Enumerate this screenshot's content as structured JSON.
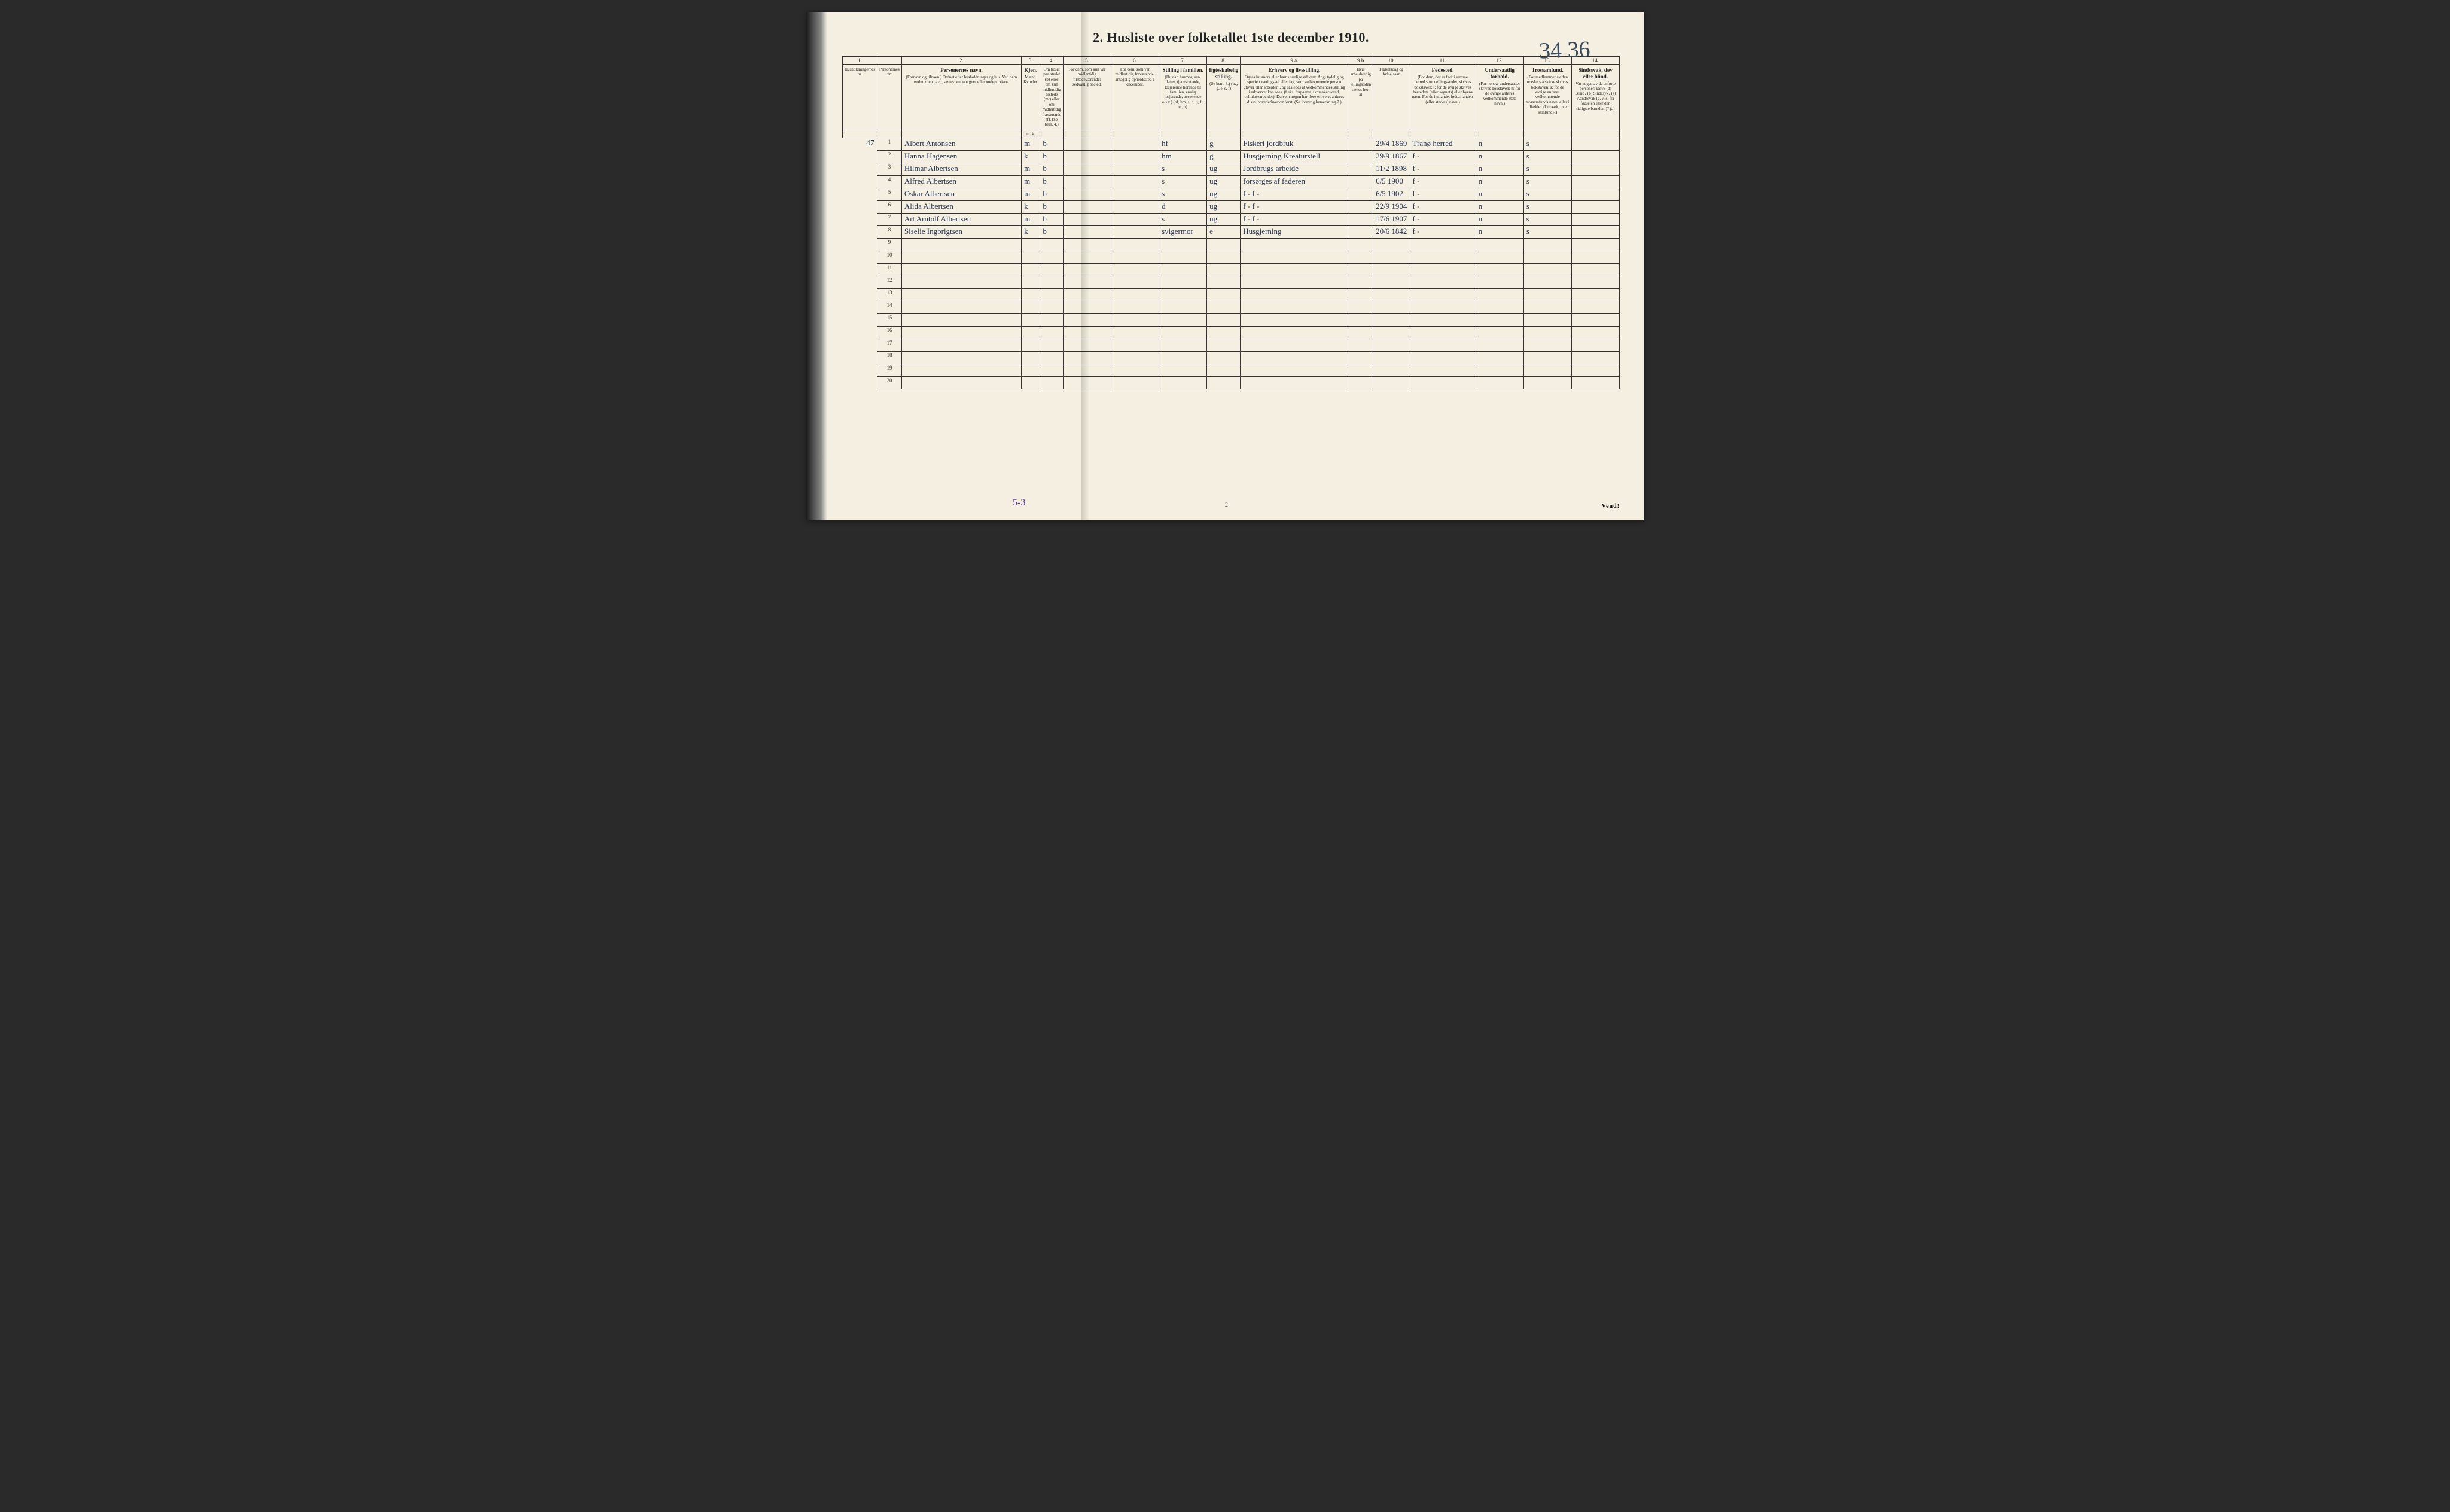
{
  "title": "2.  Husliste over folketallet 1ste december 1910.",
  "page_annotation": "34 36",
  "footer_annotation": "5-3",
  "page_number_bottom": "2",
  "vend_label": "Vend!",
  "colors": {
    "paper": "#f4efe0",
    "ink_print": "#222222",
    "ink_script": "#2a3a5a",
    "ink_purple": "#5a3aa0",
    "border": "#333333"
  },
  "column_numbers": [
    "1.",
    "",
    "2.",
    "3.",
    "4.",
    "5.",
    "6.",
    "7.",
    "8.",
    "9 a.",
    "9 b",
    "10.",
    "11.",
    "12.",
    "13.",
    "14."
  ],
  "headers": [
    {
      "main": "",
      "sub": "Husholdningernes nr.",
      "cls": "c-w-tiny"
    },
    {
      "main": "",
      "sub": "Personernes nr.",
      "cls": "c-w-tiny"
    },
    {
      "main": "Personernes navn.",
      "sub": "(Fornavn og tilnavn.) Ordnet efter husholdninger og hus. Ved barn endnu uten navn, sættes: «udøpt gut» eller «udøpt pike».",
      "cls": "c-w-name"
    },
    {
      "main": "Kjøn.",
      "sub": "Mænd. Kvinder.",
      "cls": "c-w-sm"
    },
    {
      "main": "",
      "sub": "Om bosat paa stedet (b) eller om kun midlertidig tilstede (mt) eller om midlertidig fraværende (f). (Se bem. 4.)",
      "cls": "c-w-sm"
    },
    {
      "main": "",
      "sub": "For dem, som kun var midlertidig tilstedeværende: sedvanlig bosted.",
      "cls": "c-w-med"
    },
    {
      "main": "",
      "sub": "For dem, som var midlertidig fraværende: antagelig opholdssted 1 december.",
      "cls": "c-w-med"
    },
    {
      "main": "Stilling i familien.",
      "sub": "(Husfar, husmor, søn, datter, tjenestytende, losjerende hørende til familien, enslig losjerende, besøkende o.s.v.) (hf, hm, s, d, tj, fl, el, b)",
      "cls": "c-w-med"
    },
    {
      "main": "Egteskabelig stilling.",
      "sub": "(Se bem. 6.) (ug, g, e, s, f)",
      "cls": "c-w-sm"
    },
    {
      "main": "Erhverv og livsstilling.",
      "sub": "Ogsaa husmors eller barns særlige erhverv. Angi tydelig og specielt næringsvei eller fag, som vedkommende person utøver eller arbeider i, og saaledes at vedkommendes stilling i erhvervet kan sees, (f.eks. forpagter, skomakersvend, cellulosearbeider). Dersom nogen har flere erhverv, anføres disse, hovederhvervet først. (Se forøvrig bemerkning 7.)",
      "cls": "c-w-occ"
    },
    {
      "main": "",
      "sub": "Hvis arbeidsledig pa tellingstiden sættes her: al",
      "cls": "c-w-tiny"
    },
    {
      "main": "",
      "sub": "Fødselsdag og fødselsaar.",
      "cls": "c-w-sm"
    },
    {
      "main": "Fødested.",
      "sub": "(For dem, der er født i samme herred som tællingsstedet, skrives bokstaven: t; for de øvrige skrives herredets (eller sognets) eller byens navn. For de i utlandet fødte: landets (eller stedets) navn.)",
      "cls": "c-w-lg"
    },
    {
      "main": "Undersaatlig forhold.",
      "sub": "(For norske undersaatter skrives bokstaven: n; for de øvrige anføres vedkommende stats navn.)",
      "cls": "c-w-med"
    },
    {
      "main": "Trossamfund.",
      "sub": "(For medlemmer av den norske statskirke skrives bokstaven: s; for de øvrige anføres vedkommende trossamfunds navn, eller i tilfælde: «Uttraadt, intet samfund».)",
      "cls": "c-w-med"
    },
    {
      "main": "Sindssvak, døv eller blind.",
      "sub": "Var nogen av de anførte personer: Døv? (d) Blind? (b) Sindssyk? (s) Aandssvak (d. v. s. fra fødselen eller den tidligste barndom)? (a)",
      "cls": "c-w-med"
    }
  ],
  "subheads": [
    "",
    "",
    "",
    "m.  k.",
    "",
    "",
    "",
    "",
    "",
    "",
    "",
    "",
    "",
    "",
    "",
    ""
  ],
  "rows": [
    {
      "margin": "47",
      "n": "1",
      "name": "Albert Antonsen",
      "sex": "m",
      "res": "b",
      "c5": "",
      "c6": "",
      "fam": "hf",
      "mar": "g",
      "occ": "Fiskeri jordbruk",
      "al": "",
      "born": "29/4 1869",
      "place": "Tranø herred",
      "nat": "n",
      "rel": "s",
      "dis": ""
    },
    {
      "margin": "",
      "n": "2",
      "name": "Hanna Hagensen",
      "sex": "k",
      "res": "b",
      "c5": "",
      "c6": "",
      "fam": "hm",
      "mar": "g",
      "occ": "Husgjerning Kreaturstell",
      "al": "",
      "born": "29/9 1867",
      "place": "f  -",
      "nat": "n",
      "rel": "s",
      "dis": ""
    },
    {
      "margin": "",
      "n": "3",
      "name": "Hilmar Albertsen",
      "sex": "m",
      "res": "b",
      "c5": "",
      "c6": "",
      "fam": "s",
      "mar": "ug",
      "occ": "Jordbrugs arbeide",
      "al": "",
      "born": "11/2 1898",
      "place": "f  -",
      "nat": "n",
      "rel": "s",
      "dis": ""
    },
    {
      "margin": "",
      "n": "4",
      "name": "Alfred Albertsen",
      "sex": "m",
      "res": "b",
      "c5": "",
      "c6": "",
      "fam": "s",
      "mar": "ug",
      "occ": "forsørges af faderen",
      "al": "",
      "born": "6/5 1900",
      "place": "f  -",
      "nat": "n",
      "rel": "s",
      "dis": ""
    },
    {
      "margin": "",
      "n": "5",
      "name": "Oskar Albertsen",
      "sex": "m",
      "res": "b",
      "c5": "",
      "c6": "",
      "fam": "s",
      "mar": "ug",
      "occ": "f - f -",
      "al": "",
      "born": "6/5 1902",
      "place": "f  -",
      "nat": "n",
      "rel": "s",
      "dis": ""
    },
    {
      "margin": "",
      "n": "6",
      "name": "Alida Albertsen",
      "sex": "k",
      "res": "b",
      "c5": "",
      "c6": "",
      "fam": "d",
      "mar": "ug",
      "occ": "f - f -",
      "al": "",
      "born": "22/9 1904",
      "place": "f  -",
      "nat": "n",
      "rel": "s",
      "dis": ""
    },
    {
      "margin": "",
      "n": "7",
      "name": "Art Arntolf Albertsen",
      "sex": "m",
      "res": "b",
      "c5": "",
      "c6": "",
      "fam": "s",
      "mar": "ug",
      "occ": "f - f -",
      "al": "",
      "born": "17/6 1907",
      "place": "f  -",
      "nat": "n",
      "rel": "s",
      "dis": ""
    },
    {
      "margin": "",
      "n": "8",
      "name": "Siselie Ingbrigtsen",
      "sex": "k",
      "res": "b",
      "c5": "",
      "c6": "",
      "fam": "svigermor",
      "mar": "e",
      "occ": "Husgjerning",
      "al": "",
      "born": "20/6 1842",
      "place": "f  -",
      "nat": "n",
      "rel": "s",
      "dis": ""
    }
  ],
  "empty_row_numbers": [
    "9",
    "10",
    "11",
    "12",
    "13",
    "14",
    "15",
    "16",
    "17",
    "18",
    "19",
    "20"
  ]
}
